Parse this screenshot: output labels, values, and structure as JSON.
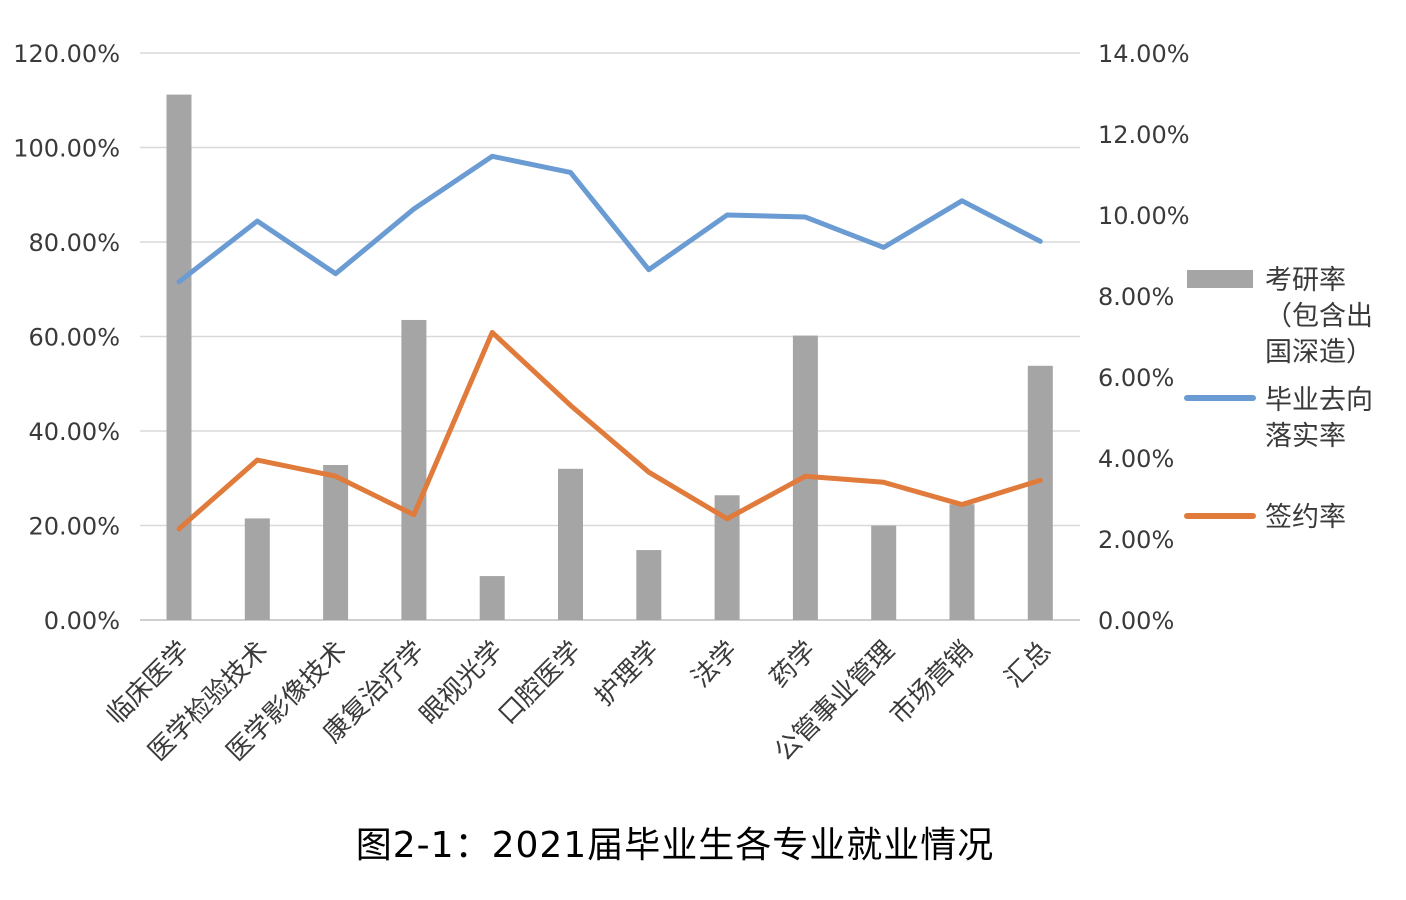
{
  "chart_data": {
    "type": "bar+line",
    "categories": [
      "临床医学",
      "医学检验技术",
      "医学影像技术",
      "康复治疗学",
      "眼视光学",
      "口腔医学",
      "护理学",
      "法学",
      "药学",
      "公管事业管理",
      "市场营销",
      "汇总"
    ],
    "series": [
      {
        "name": "考研率（包含出国深造）",
        "kind": "bar",
        "axis": "left",
        "color": "#a5a5a5",
        "values": [
          111.2,
          21.5,
          32.8,
          63.5,
          9.3,
          32.0,
          14.8,
          26.4,
          60.2,
          20.0,
          24.5,
          53.8
        ]
      },
      {
        "name": "毕业去向落实率",
        "kind": "line",
        "axis": "right",
        "color": "#6a9bd2",
        "values": [
          8.35,
          9.85,
          8.55,
          10.15,
          11.45,
          11.05,
          8.65,
          10.0,
          9.95,
          9.2,
          10.35,
          9.35
        ]
      },
      {
        "name": "签约率",
        "kind": "line",
        "axis": "right",
        "color": "#e07b3c",
        "values": [
          2.25,
          3.95,
          3.55,
          2.6,
          7.1,
          5.3,
          3.65,
          2.5,
          3.55,
          3.4,
          2.85,
          3.45
        ]
      }
    ],
    "y_left": {
      "ylim": [
        0,
        120
      ],
      "ticks": [
        "0.00%",
        "20.00%",
        "40.00%",
        "60.00%",
        "80.00%",
        "100.00%",
        "120.00%"
      ]
    },
    "y_right": {
      "ylim": [
        0,
        14
      ],
      "ticks": [
        "0.00%",
        "2.00%",
        "4.00%",
        "6.00%",
        "8.00%",
        "10.00%",
        "12.00%",
        "14.00%"
      ]
    },
    "legend": {
      "position": "right",
      "entries": [
        {
          "lines": [
            "考研率",
            "（包含出",
            "国深造）"
          ]
        },
        {
          "lines": [
            "毕业去向",
            "落实率"
          ]
        },
        {
          "lines": [
            "签约率"
          ]
        }
      ]
    },
    "grid": true,
    "caption": "图2-1：2021届毕业生各专业就业情况"
  }
}
